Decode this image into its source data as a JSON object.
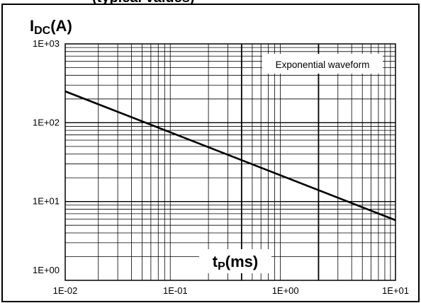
{
  "header_fragment": "(typical values)",
  "chart_data": {
    "type": "line",
    "title": "",
    "ylabel_main": "I",
    "ylabel_sub": "DC",
    "ylabel_unit": "(A)",
    "xlabel_main": "t",
    "xlabel_sub": "P",
    "xlabel_unit": "(ms)",
    "xscale": "log",
    "yscale": "log",
    "xlim": [
      0.01,
      10
    ],
    "ylim": [
      1,
      1000
    ],
    "x_ticks": [
      "1E-02",
      "1E-01",
      "1E+00",
      "1E+01"
    ],
    "y_ticks": [
      "1E+00",
      "1E+01",
      "1E+02",
      "1E+03"
    ],
    "grid": true,
    "annotation": "Exponential waveform",
    "series": [
      {
        "x": [
          0.01,
          10
        ],
        "y": [
          250,
          5.8
        ]
      }
    ],
    "colors": {
      "line": "#000000",
      "grid": "#000000",
      "frame": "#000000",
      "background": "#ffffff"
    }
  }
}
